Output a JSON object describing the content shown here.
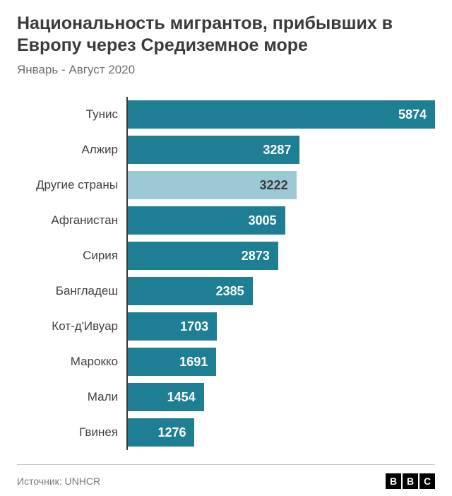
{
  "title": "Национальность мигрантов, прибывших в Европу через Средиземное море",
  "subtitle": "Январь - Август 2020",
  "source": "Источник: UNHCR",
  "logo": [
    "B",
    "B",
    "C"
  ],
  "chart": {
    "type": "bar",
    "orientation": "horizontal",
    "xmax": 5874,
    "axis_color": "#3b3b3b",
    "background_color": "#ffffff",
    "label_fontsize": 17,
    "value_fontsize": 18,
    "value_fontweight": 700,
    "default_bar_color": "#1e7e94",
    "default_value_color": "#ffffff",
    "highlight_bar_color": "#9cc9d6",
    "highlight_value_color": "#3b3b3b",
    "bars": [
      {
        "label": "Тунис",
        "value": 5874,
        "color": "#1e7e94",
        "value_color": "#ffffff"
      },
      {
        "label": "Алжир",
        "value": 3287,
        "color": "#1e7e94",
        "value_color": "#ffffff"
      },
      {
        "label": "Другие страны",
        "value": 3222,
        "color": "#9cc9d6",
        "value_color": "#3b3b3b"
      },
      {
        "label": "Афганистан",
        "value": 3005,
        "color": "#1e7e94",
        "value_color": "#ffffff"
      },
      {
        "label": "Сирия",
        "value": 2873,
        "color": "#1e7e94",
        "value_color": "#ffffff"
      },
      {
        "label": "Бангладеш",
        "value": 2385,
        "color": "#1e7e94",
        "value_color": "#ffffff"
      },
      {
        "label": "Кот-д'Ивуар",
        "value": 1703,
        "color": "#1e7e94",
        "value_color": "#ffffff"
      },
      {
        "label": "Марокко",
        "value": 1691,
        "color": "#1e7e94",
        "value_color": "#ffffff"
      },
      {
        "label": "Мали",
        "value": 1454,
        "color": "#1e7e94",
        "value_color": "#ffffff"
      },
      {
        "label": "Гвинея",
        "value": 1276,
        "color": "#1e7e94",
        "value_color": "#ffffff"
      }
    ]
  }
}
